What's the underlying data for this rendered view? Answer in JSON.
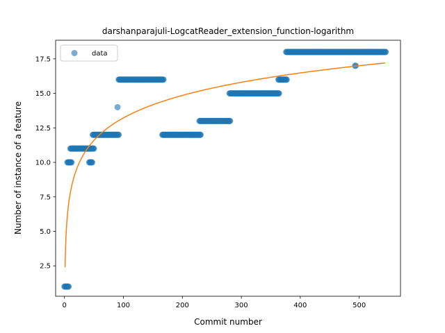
{
  "chart_data": {
    "type": "scatter",
    "title": "darshanparajuli-LogcatReader_extension_function-logarithm",
    "xlabel": "Commit number",
    "ylabel": "Number of instance of a feature",
    "xlim": [
      -15,
      570
    ],
    "ylim": [
      0.3,
      18.85
    ],
    "xticks": [
      0,
      100,
      200,
      300,
      400,
      500
    ],
    "yticks": [
      2.5,
      5.0,
      7.5,
      10.0,
      12.5,
      15.0,
      17.5
    ],
    "ytick_labels": [
      "2.5",
      "5.0",
      "7.5",
      "10.0",
      "12.5",
      "15.0",
      "17.5"
    ],
    "legend": {
      "position": "upper-left",
      "entries": [
        "data"
      ]
    },
    "colors": {
      "data": "#1f77b4",
      "fit": "#ff7f0e"
    },
    "series": [
      {
        "name": "data",
        "kind": "points",
        "segments": [
          {
            "x_start": 0,
            "x_end": 7,
            "y": 1
          },
          {
            "x_start": 5,
            "x_end": 12,
            "y": 10
          },
          {
            "x_start": 10,
            "x_end": 50,
            "y": 11
          },
          {
            "x_start": 42,
            "x_end": 47,
            "y": 10
          },
          {
            "x_start": 48,
            "x_end": 92,
            "y": 12
          },
          {
            "x_start": 90,
            "x_end": 90,
            "y": 14
          },
          {
            "x_start": 92,
            "x_end": 168,
            "y": 16
          },
          {
            "x_start": 166,
            "x_end": 231,
            "y": 12
          },
          {
            "x_start": 229,
            "x_end": 281,
            "y": 13
          },
          {
            "x_start": 280,
            "x_end": 364,
            "y": 15
          },
          {
            "x_start": 363,
            "x_end": 377,
            "y": 16
          },
          {
            "x_start": 376,
            "x_end": 545,
            "y": 18
          },
          {
            "x_start": 493,
            "x_end": 494,
            "y": 17
          }
        ]
      },
      {
        "kind": "fit-line",
        "function": "logarithm",
        "a": 2.4,
        "b": 2.35,
        "x_range": [
          1,
          544
        ]
      }
    ]
  }
}
